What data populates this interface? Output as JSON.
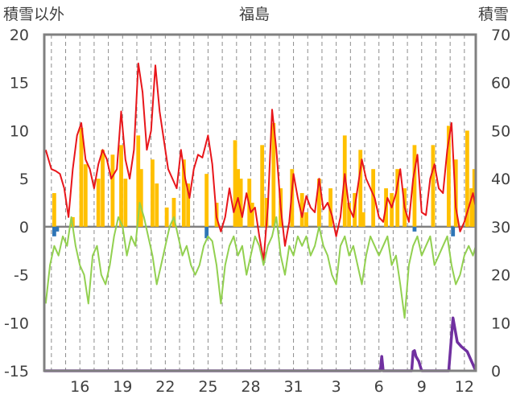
{
  "chart_data": {
    "type": "line",
    "title": "福島",
    "left_axis_label": "積雪以外",
    "right_axis_label": "積雪",
    "y_left": {
      "min": -15,
      "max": 20,
      "step": 5
    },
    "y_right": {
      "min": 0,
      "max": 70,
      "step": 10
    },
    "x_tick_labels": [
      "16",
      "19",
      "22",
      "25",
      "28",
      "31",
      "3",
      "6",
      "9",
      "12"
    ],
    "x_day_range": [
      13.5,
      43.8
    ],
    "x_tick_days": [
      16,
      19,
      22,
      25,
      28,
      31,
      34,
      37,
      40,
      43
    ],
    "grid": {
      "vertical_dashed": true,
      "horizontal": false
    },
    "colors": {
      "red": "#e8161b",
      "orange": "#ffc000",
      "green": "#92d050",
      "blue": "#2e75b6",
      "purple": "#7030a0",
      "zero_line": "#808080",
      "frame": "#808080"
    },
    "series": [
      {
        "axis": "left",
        "style": "line",
        "color": "#e8161b",
        "points": [
          [
            13.6,
            8
          ],
          [
            13.8,
            7
          ],
          [
            14,
            6
          ],
          [
            14.3,
            5.8
          ],
          [
            14.6,
            5.5
          ],
          [
            14.9,
            4
          ],
          [
            15.2,
            1
          ],
          [
            15.5,
            6
          ],
          [
            15.8,
            9.5
          ],
          [
            16.1,
            10.8
          ],
          [
            16.4,
            7
          ],
          [
            16.7,
            6
          ],
          [
            17,
            4
          ],
          [
            17.3,
            6.5
          ],
          [
            17.6,
            8
          ],
          [
            17.9,
            7
          ],
          [
            18.2,
            5
          ],
          [
            18.6,
            6
          ],
          [
            18.9,
            12
          ],
          [
            19.2,
            7
          ],
          [
            19.5,
            5
          ],
          [
            19.8,
            8
          ],
          [
            20.1,
            17
          ],
          [
            20.4,
            14
          ],
          [
            20.7,
            8
          ],
          [
            21,
            10
          ],
          [
            21.3,
            16.8
          ],
          [
            21.6,
            12
          ],
          [
            21.9,
            9
          ],
          [
            22.2,
            6
          ],
          [
            22.5,
            5
          ],
          [
            22.8,
            4
          ],
          [
            23.1,
            8
          ],
          [
            23.4,
            5
          ],
          [
            23.7,
            3
          ],
          [
            24,
            6
          ],
          [
            24.3,
            7.5
          ],
          [
            24.6,
            7.2
          ],
          [
            25,
            9.5
          ],
          [
            25.3,
            6.5
          ],
          [
            25.6,
            1
          ],
          [
            25.9,
            -0.5
          ],
          [
            26.2,
            1
          ],
          [
            26.5,
            4
          ],
          [
            26.8,
            1.5
          ],
          [
            27.1,
            3
          ],
          [
            27.4,
            1
          ],
          [
            27.7,
            3.5
          ],
          [
            28,
            1.5
          ],
          [
            28.3,
            2
          ],
          [
            28.6,
            -1
          ],
          [
            28.9,
            -3.5
          ],
          [
            29.2,
            2
          ],
          [
            29.5,
            12.2
          ],
          [
            29.8,
            8
          ],
          [
            30.1,
            2
          ],
          [
            30.4,
            -2
          ],
          [
            30.7,
            0.5
          ],
          [
            31,
            5.5
          ],
          [
            31.3,
            3
          ],
          [
            31.6,
            1
          ],
          [
            31.9,
            3.2
          ],
          [
            32.2,
            2
          ],
          [
            32.5,
            1.5
          ],
          [
            32.8,
            5
          ],
          [
            33.1,
            1.8
          ],
          [
            33.4,
            2.5
          ],
          [
            33.7,
            1.2
          ],
          [
            34,
            -1
          ],
          [
            34.3,
            1
          ],
          [
            34.6,
            5.5
          ],
          [
            34.9,
            2
          ],
          [
            35.2,
            1
          ],
          [
            35.5,
            4
          ],
          [
            35.8,
            7
          ],
          [
            36.1,
            5
          ],
          [
            36.4,
            4
          ],
          [
            36.7,
            3
          ],
          [
            37,
            1
          ],
          [
            37.3,
            0.5
          ],
          [
            37.6,
            3
          ],
          [
            37.9,
            2
          ],
          [
            38.2,
            3.5
          ],
          [
            38.5,
            6
          ],
          [
            38.8,
            2
          ],
          [
            39.1,
            0.5
          ],
          [
            39.4,
            5
          ],
          [
            39.7,
            7.5
          ],
          [
            40,
            1.5
          ],
          [
            40.3,
            1.2
          ],
          [
            40.6,
            5
          ],
          [
            40.9,
            6.5
          ],
          [
            41.2,
            4
          ],
          [
            41.5,
            3.5
          ],
          [
            41.8,
            8
          ],
          [
            42.1,
            10.8
          ],
          [
            42.4,
            2
          ],
          [
            42.7,
            -0.5
          ],
          [
            43,
            0.5
          ],
          [
            43.3,
            2
          ],
          [
            43.6,
            3.5
          ],
          [
            43.8,
            2
          ]
        ]
      },
      {
        "axis": "left",
        "style": "line",
        "color": "#92d050",
        "points": [
          [
            13.6,
            -8
          ],
          [
            13.9,
            -4
          ],
          [
            14.2,
            -2
          ],
          [
            14.5,
            -3
          ],
          [
            14.8,
            -1
          ],
          [
            15.1,
            -2
          ],
          [
            15.4,
            1
          ],
          [
            15.7,
            -2
          ],
          [
            16,
            -4
          ],
          [
            16.3,
            -5
          ],
          [
            16.6,
            -8
          ],
          [
            16.9,
            -3
          ],
          [
            17.2,
            -2
          ],
          [
            17.5,
            -5
          ],
          [
            17.8,
            -6
          ],
          [
            18.1,
            -4
          ],
          [
            18.4,
            -1
          ],
          [
            18.7,
            1
          ],
          [
            19,
            0
          ],
          [
            19.3,
            -3
          ],
          [
            19.6,
            -1
          ],
          [
            19.9,
            -2
          ],
          [
            20.2,
            2.5
          ],
          [
            20.5,
            1
          ],
          [
            20.8,
            -1
          ],
          [
            21.1,
            -3
          ],
          [
            21.4,
            -6
          ],
          [
            21.7,
            -4
          ],
          [
            22,
            -2
          ],
          [
            22.3,
            0
          ],
          [
            22.6,
            1
          ],
          [
            22.9,
            -1
          ],
          [
            23.2,
            -3
          ],
          [
            23.5,
            -2
          ],
          [
            23.8,
            -4
          ],
          [
            24.1,
            -5
          ],
          [
            24.4,
            -4
          ],
          [
            24.7,
            -2
          ],
          [
            25,
            -1
          ],
          [
            25.3,
            -1.5
          ],
          [
            25.6,
            -4
          ],
          [
            25.9,
            -8
          ],
          [
            26.2,
            -4
          ],
          [
            26.5,
            -2
          ],
          [
            26.8,
            -1
          ],
          [
            27.1,
            -3
          ],
          [
            27.4,
            -2
          ],
          [
            27.7,
            -5
          ],
          [
            28,
            -3
          ],
          [
            28.3,
            -1
          ],
          [
            28.6,
            -2
          ],
          [
            28.9,
            -4
          ],
          [
            29.2,
            -2
          ],
          [
            29.5,
            -1
          ],
          [
            29.8,
            1
          ],
          [
            30.1,
            -3
          ],
          [
            30.4,
            -5
          ],
          [
            30.7,
            -2
          ],
          [
            31,
            -3
          ],
          [
            31.3,
            -1
          ],
          [
            31.6,
            -2
          ],
          [
            31.9,
            -1
          ],
          [
            32.2,
            -3
          ],
          [
            32.5,
            -2
          ],
          [
            32.8,
            0
          ],
          [
            33.1,
            -2
          ],
          [
            33.4,
            -3
          ],
          [
            33.7,
            -5
          ],
          [
            34,
            -6
          ],
          [
            34.3,
            -2
          ],
          [
            34.6,
            -1
          ],
          [
            34.9,
            -3
          ],
          [
            35.2,
            -2
          ],
          [
            35.5,
            -4
          ],
          [
            35.8,
            -6
          ],
          [
            36.1,
            -3
          ],
          [
            36.4,
            -1
          ],
          [
            36.7,
            -2
          ],
          [
            37,
            -3
          ],
          [
            37.3,
            -2
          ],
          [
            37.6,
            -1
          ],
          [
            37.9,
            -4
          ],
          [
            38.2,
            -3
          ],
          [
            38.5,
            -6
          ],
          [
            38.8,
            -9.5
          ],
          [
            39.1,
            -4
          ],
          [
            39.4,
            -2
          ],
          [
            39.7,
            -1
          ],
          [
            40,
            -3
          ],
          [
            40.3,
            -2
          ],
          [
            40.6,
            -1
          ],
          [
            40.9,
            -4
          ],
          [
            41.2,
            -3
          ],
          [
            41.5,
            -2
          ],
          [
            41.8,
            -1
          ],
          [
            42.1,
            -4
          ],
          [
            42.4,
            -6
          ],
          [
            42.7,
            -5
          ],
          [
            43,
            -3
          ],
          [
            43.3,
            -2
          ],
          [
            43.6,
            -3
          ],
          [
            43.8,
            -2
          ]
        ]
      },
      {
        "axis": "left",
        "style": "bar",
        "color": "#ffc000",
        "points": [
          [
            14.2,
            3.5
          ],
          [
            15.5,
            1
          ],
          [
            16.1,
            10.3
          ],
          [
            16.4,
            6.5
          ],
          [
            17.3,
            5
          ],
          [
            17.6,
            8
          ],
          [
            18.3,
            7.5
          ],
          [
            18.9,
            8.5
          ],
          [
            19.2,
            5
          ],
          [
            20.1,
            9.5
          ],
          [
            20.3,
            6
          ],
          [
            21.1,
            7
          ],
          [
            21.4,
            4.5
          ],
          [
            22.1,
            2
          ],
          [
            22.6,
            3
          ],
          [
            23.3,
            7
          ],
          [
            23.6,
            4.5
          ],
          [
            24.9,
            5.5
          ],
          [
            25.6,
            2.5
          ],
          [
            26.9,
            9
          ],
          [
            27.1,
            6
          ],
          [
            27.3,
            5
          ],
          [
            27.9,
            5
          ],
          [
            28.1,
            2.5
          ],
          [
            28.8,
            8.5
          ],
          [
            29.1,
            3
          ],
          [
            29.6,
            10.8
          ],
          [
            30.1,
            4
          ],
          [
            30.9,
            6
          ],
          [
            31.6,
            3.5
          ],
          [
            31.9,
            1.5
          ],
          [
            32.8,
            5
          ],
          [
            33.6,
            4
          ],
          [
            34.6,
            9.5
          ],
          [
            34.9,
            2.5
          ],
          [
            35.3,
            3.5
          ],
          [
            35.7,
            8
          ],
          [
            35.9,
            1.5
          ],
          [
            36.6,
            6
          ],
          [
            37.5,
            4
          ],
          [
            37.9,
            3.5
          ],
          [
            38.3,
            6
          ],
          [
            38.8,
            4
          ],
          [
            39.5,
            8.5
          ],
          [
            40.8,
            8.5
          ],
          [
            41.9,
            10.5
          ],
          [
            42.4,
            7
          ],
          [
            43.2,
            10
          ],
          [
            43.5,
            4
          ],
          [
            43.7,
            6
          ]
        ]
      },
      {
        "axis": "left",
        "style": "bar",
        "color": "#2e75b6",
        "points": [
          [
            14.2,
            -1
          ],
          [
            14.4,
            -0.5
          ],
          [
            24.9,
            -1.2
          ],
          [
            39.5,
            -0.5
          ],
          [
            42.2,
            -1
          ]
        ]
      },
      {
        "axis": "right",
        "style": "line",
        "color": "#7030a0",
        "points": [
          [
            13.5,
            0
          ],
          [
            37.1,
            0
          ],
          [
            37.2,
            3
          ],
          [
            37.3,
            0
          ],
          [
            39.3,
            0
          ],
          [
            39.4,
            4
          ],
          [
            39.5,
            4.2
          ],
          [
            39.6,
            3
          ],
          [
            39.8,
            2
          ],
          [
            40,
            0
          ],
          [
            41.9,
            0
          ],
          [
            42.2,
            11
          ],
          [
            42.5,
            6
          ],
          [
            42.8,
            5
          ],
          [
            43.2,
            4
          ],
          [
            43.5,
            2
          ],
          [
            43.8,
            0
          ]
        ]
      }
    ]
  }
}
